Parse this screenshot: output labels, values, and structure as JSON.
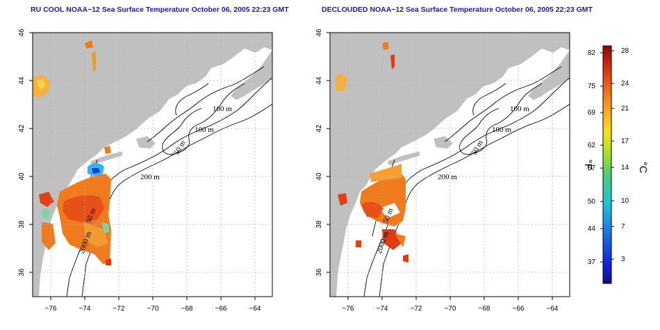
{
  "panels": [
    {
      "title": "RU COOL NOAA−12 Sea Surface Temperature October 06, 2005 22:23 GMT",
      "contour_labels": [
        "100 m",
        "100 m",
        "50 m",
        "200 m",
        "50 m",
        "2000 m"
      ]
    },
    {
      "title": "DECLOUDED NOAA−12 Sea Surface Temperature October 06, 2005 22:23 GMT",
      "contour_labels": [
        "100 m",
        "100 m",
        "50 m",
        "200 m",
        "50 m",
        "2000 m"
      ]
    }
  ],
  "axes": {
    "x_ticks": [
      "−76",
      "−74",
      "−72",
      "−70",
      "−68",
      "−66",
      "−64"
    ],
    "y_ticks": [
      "36",
      "38",
      "40",
      "42",
      "44",
      "46"
    ],
    "x_values": [
      -76,
      -74,
      -72,
      -70,
      -68,
      -66,
      -64
    ],
    "y_values": [
      36,
      38,
      40,
      42,
      44,
      46
    ],
    "xlim": [
      -77,
      -63
    ],
    "ylim": [
      35,
      46
    ]
  },
  "colorbar": {
    "f_unit": "°F",
    "c_unit": "°C",
    "f_ticks": [
      "82",
      "75",
      "69",
      "62",
      "57",
      "50",
      "44",
      "37"
    ],
    "c_ticks": [
      "28",
      "24",
      "21",
      "17",
      "14",
      "10",
      "7",
      "3"
    ],
    "f_values": [
      82,
      75,
      69,
      62,
      57,
      50,
      44,
      37
    ],
    "c_values": [
      28,
      24,
      21,
      17,
      14,
      10,
      7,
      3
    ],
    "range_c": [
      0,
      29
    ]
  },
  "colors": {
    "land": "#c0c0c0",
    "water": "#ffffff",
    "title": "#1a1aa6",
    "sst_warm": "#f06a1e",
    "sst_hot": "#e03a14",
    "sst_cool": "#3ab0f0"
  }
}
